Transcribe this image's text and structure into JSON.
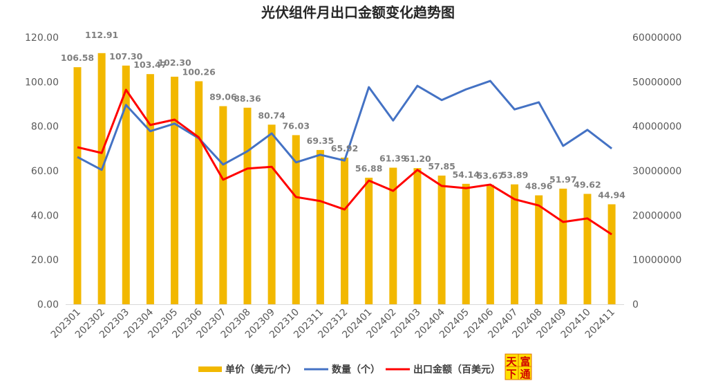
{
  "chart_data": {
    "type": "bar+line",
    "title": "光伏组件月出口金额变化趋势图",
    "categories": [
      "202301",
      "202302",
      "202303",
      "202304",
      "202305",
      "202306",
      "202307",
      "202308",
      "202309",
      "202310",
      "202311",
      "202312",
      "202401",
      "202402",
      "202403",
      "202404",
      "202405",
      "202406",
      "202407",
      "202408",
      "202409",
      "202410",
      "202411"
    ],
    "series": [
      {
        "name": "单价（美元/个）",
        "type": "bar",
        "axis": "left",
        "color": "#F2B800",
        "values": [
          106.58,
          112.91,
          107.3,
          103.47,
          102.3,
          100.26,
          89.06,
          88.36,
          80.74,
          76.03,
          69.35,
          65.92,
          56.88,
          61.39,
          61.2,
          57.85,
          54.14,
          53.67,
          53.89,
          48.96,
          51.97,
          49.62,
          44.94
        ],
        "labels": [
          "106.58",
          "112.91",
          "107.30",
          "103.47",
          "102.30",
          "100.26",
          "89.06",
          "88.36",
          "80.74",
          "76.03",
          "69.35",
          "65.92",
          "56.88",
          "61.39",
          "61.20",
          "57.85",
          "54.14",
          "53.67",
          "53.89",
          "48.96",
          "51.97",
          "49.62",
          "44.94"
        ]
      },
      {
        "name": "数量（个）",
        "type": "line",
        "axis": "right",
        "color": "#4472C4",
        "values": [
          33100000,
          30200000,
          44800000,
          38900000,
          40600000,
          37300000,
          31400000,
          34400000,
          38400000,
          31900000,
          33600000,
          32300000,
          48800000,
          41300000,
          49100000,
          45900000,
          48300000,
          50200000,
          43800000,
          45400000,
          35600000,
          39200000,
          35000000
        ]
      },
      {
        "name": "出口金额（百美元）",
        "type": "line",
        "axis": "right",
        "color": "#FF0000",
        "values": [
          35300000,
          34000000,
          48200000,
          40300000,
          41500000,
          37500000,
          28000000,
          30500000,
          30900000,
          24100000,
          23200000,
          21300000,
          27800000,
          25500000,
          30200000,
          26600000,
          26100000,
          26900000,
          23600000,
          22200000,
          18500000,
          19300000,
          15700000
        ]
      }
    ],
    "left_axis": {
      "range": [
        0,
        120
      ],
      "ticks": [
        "0.00",
        "20.00",
        "40.00",
        "60.00",
        "80.00",
        "100.00",
        "120.00"
      ]
    },
    "right_axis": {
      "range": [
        0,
        60000000
      ],
      "ticks": [
        "0",
        "10000000",
        "20000000",
        "30000000",
        "40000000",
        "50000000",
        "60000000"
      ]
    },
    "grid": false,
    "legend": "bottom"
  },
  "logo": {
    "text": "天富下通"
  }
}
